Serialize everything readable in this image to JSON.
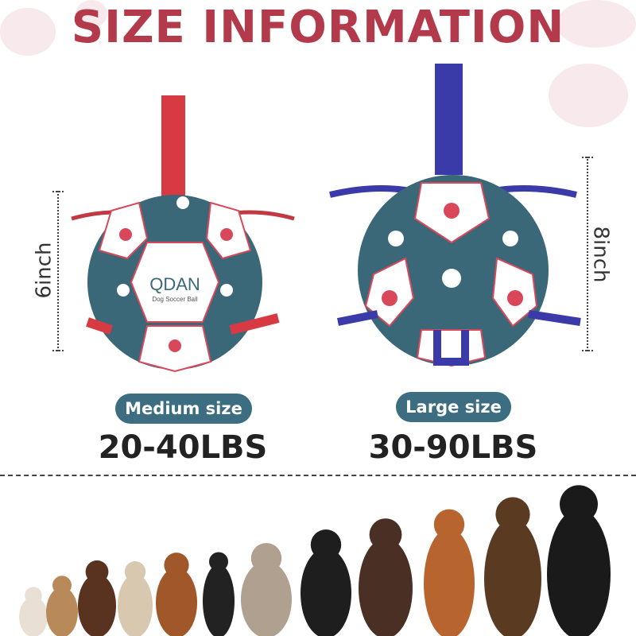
{
  "title": "SIZE INFORMATION",
  "colors": {
    "title": "#b23a4a",
    "badge": "#3d6d80",
    "ball_teal": "#3a6878",
    "ball_red": "#d9485a",
    "medium_strap": "#d83a44",
    "large_strap": "#3a3aa8"
  },
  "medium": {
    "brand": "QDAN",
    "tagline": "Dog Soccer Ball",
    "dimension": "6inch",
    "size_label": "Medium size",
    "weight": "20-40LBS"
  },
  "large": {
    "dimension": "8inch",
    "size_label": "Large size",
    "weight": "30-90LBS"
  },
  "icons": [
    "paw-icon",
    "dog-illustration"
  ]
}
